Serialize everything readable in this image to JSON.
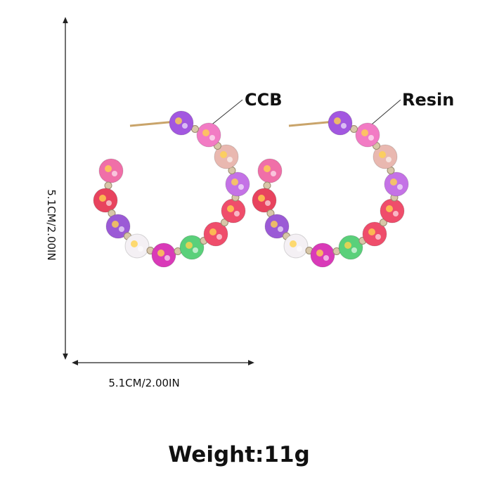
{
  "labels": {
    "material_1": "CCB",
    "material_2": "Resin",
    "height": "5.1CM/2.00IN",
    "width": "5.1CM/2.00IN",
    "weight": "Weight:11g"
  }
}
